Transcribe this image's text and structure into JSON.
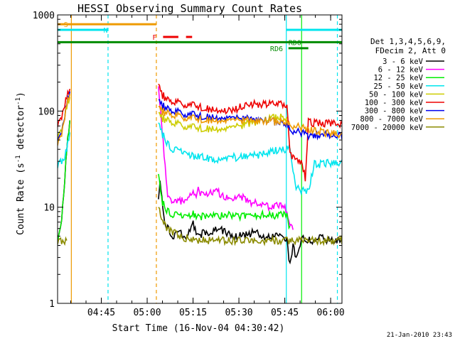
{
  "chart_data": {
    "type": "line",
    "title": "HESSI Observing Summary Count Rates",
    "xlabel": "Start Time (16-Nov-04 04:30:42)",
    "ylabel_main": "Count Rate (s",
    "ylabel_sup1": "-1",
    "ylabel_mid": " detector",
    "ylabel_sup2": "-1",
    "ylabel_end": ")",
    "yscale": "log",
    "ylim": [
      1,
      1000
    ],
    "xlim_minutes": [
      0,
      93
    ],
    "x_ticks": [
      {
        "label": "04:45",
        "minute": 14.3
      },
      {
        "label": "05:00",
        "minute": 29.3
      },
      {
        "label": "05:15",
        "minute": 44.3
      },
      {
        "label": "05:30",
        "minute": 59.3
      },
      {
        "label": "05:45",
        "minute": 74.3
      },
      {
        "label": "06:00",
        "minute": 89.3
      }
    ],
    "y_ticks": [
      {
        "label": "1",
        "value": 1
      },
      {
        "label": "10",
        "value": 10
      },
      {
        "label": "100",
        "value": 100
      },
      {
        "label": "1000",
        "value": 1000
      }
    ],
    "legend_header": [
      "Det 1,3,4,5,6,9,",
      "FDecim 2, Att 0"
    ],
    "series": [
      {
        "name": "3 - 6 keV",
        "color": "#000000",
        "x": [
          0,
          1,
          2,
          3,
          4,
          33,
          33.5,
          35,
          36,
          38,
          40,
          42,
          44,
          46,
          48,
          50,
          52,
          55,
          58,
          61,
          64,
          67,
          70,
          73,
          75,
          76,
          77,
          78,
          80,
          82,
          84,
          86,
          88,
          90,
          92,
          93
        ],
        "y": [
          4.5,
          6,
          14,
          40,
          80,
          12,
          20,
          7,
          6,
          5,
          5.5,
          4.5,
          7,
          5,
          5.5,
          5,
          6,
          5.5,
          5,
          5,
          5.5,
          5,
          5,
          5,
          4.5,
          2.5,
          4,
          3,
          5,
          4.5,
          4.5,
          5,
          4.5,
          4.5,
          4.5,
          4.5
        ]
      },
      {
        "name": "6 - 12 keV",
        "color": "#ff00ff",
        "x": [
          0,
          1,
          2,
          3,
          4,
          33,
          33.5,
          34.5,
          35.5,
          36,
          37,
          39,
          41,
          43,
          44,
          45,
          46,
          48,
          50,
          52,
          54,
          56,
          58,
          60,
          62,
          64,
          66,
          68,
          70,
          72,
          74,
          75,
          76,
          77
        ],
        "y": [
          4.5,
          6,
          14,
          40,
          80,
          180,
          120,
          50,
          20,
          14,
          12,
          11,
          12,
          13,
          14,
          13,
          15,
          13,
          14,
          15,
          13,
          12,
          12,
          13,
          12,
          11,
          11,
          10.5,
          10,
          10.5,
          10,
          9,
          7,
          6
        ]
      },
      {
        "name": "12 - 25 keV",
        "color": "#00ee00",
        "x": [
          0,
          1,
          2,
          3,
          4,
          33,
          34,
          35,
          36,
          38,
          40,
          42,
          44,
          46,
          48,
          50,
          53,
          56,
          59,
          62,
          65,
          68,
          71,
          74,
          75,
          76
        ],
        "y": [
          4.5,
          6,
          14,
          40,
          80,
          22,
          12,
          10,
          9,
          8.5,
          8,
          8,
          8.5,
          8,
          8,
          8,
          8,
          8.5,
          8,
          8,
          8,
          8.5,
          8,
          8.5,
          8,
          6
        ]
      },
      {
        "name": "25 - 50 keV",
        "color": "#00e5ee",
        "x": [
          0,
          1,
          2,
          3,
          4,
          33,
          34,
          35,
          36,
          38,
          40,
          42,
          45,
          48,
          51,
          54,
          57,
          60,
          63,
          66,
          69,
          72,
          74,
          75,
          76,
          78,
          80,
          82,
          84,
          86,
          88,
          90,
          92,
          93
        ],
        "y": [
          28,
          30,
          32,
          40,
          60,
          75,
          60,
          52,
          45,
          40,
          38,
          36,
          34,
          33,
          32,
          32,
          33,
          33,
          34,
          35,
          37,
          39,
          40,
          41,
          41,
          16,
          15,
          15,
          28,
          28,
          29,
          28,
          29,
          29
        ]
      },
      {
        "name": "50 - 100 keV",
        "color": "#cdcd00",
        "x": [
          0,
          1,
          2,
          3,
          4,
          33,
          34,
          36,
          38,
          40,
          42,
          44,
          46,
          48,
          50,
          52,
          55,
          58,
          61,
          64,
          67,
          70,
          73,
          75
        ],
        "y": [
          55,
          60,
          80,
          110,
          140,
          95,
          85,
          80,
          75,
          72,
          70,
          68,
          67,
          66,
          66,
          65,
          66,
          68,
          72,
          76,
          80,
          84,
          86,
          82
        ]
      },
      {
        "name": "100 - 300 keV",
        "color": "#ee0000",
        "x": [
          0,
          1,
          2,
          3,
          4,
          33,
          34,
          36,
          38,
          40,
          42,
          44,
          46,
          48,
          50,
          52,
          54,
          56,
          58,
          60,
          62,
          64,
          66,
          68,
          70,
          72,
          74,
          75,
          76,
          78,
          80,
          81,
          82,
          84,
          86,
          88,
          90,
          92,
          93
        ],
        "y": [
          75,
          80,
          110,
          140,
          170,
          190,
          150,
          130,
          125,
          120,
          118,
          115,
          112,
          108,
          105,
          103,
          102,
          103,
          105,
          110,
          115,
          118,
          118,
          118,
          118,
          118,
          117,
          110,
          36,
          32,
          29,
          20,
          78,
          75,
          75,
          74,
          74,
          74,
          74
        ]
      },
      {
        "name": "300 - 800 keV",
        "color": "#0000ee",
        "x": [
          0,
          1,
          2,
          3,
          4,
          33,
          34,
          36,
          38,
          40,
          42,
          44,
          46,
          48,
          50,
          52,
          55,
          58,
          61,
          64,
          67,
          70,
          73,
          75,
          76,
          78,
          80,
          81,
          82,
          84,
          86,
          88,
          90,
          92,
          93
        ],
        "y": [
          50,
          55,
          80,
          120,
          160,
          130,
          115,
          105,
          100,
          96,
          94,
          92,
          90,
          88,
          87,
          86,
          85,
          84,
          83,
          82,
          80,
          78,
          76,
          72,
          64,
          62,
          60,
          58,
          56,
          57,
          57,
          56,
          56,
          55,
          55
        ]
      },
      {
        "name": "800 - 7000 keV",
        "color": "#ee9a00",
        "x": [
          0,
          1,
          2,
          3,
          4,
          33,
          34,
          36,
          38,
          40,
          42,
          44,
          46,
          48,
          50,
          52,
          55,
          58,
          61,
          64,
          67,
          70,
          73,
          75,
          76,
          78,
          80,
          82,
          84,
          86,
          88,
          90,
          92,
          93
        ],
        "y": [
          48,
          52,
          78,
          118,
          150,
          110,
          100,
          95,
          90,
          88,
          86,
          84,
          83,
          82,
          81,
          80,
          80,
          80,
          80,
          79,
          79,
          78,
          77,
          76,
          72,
          70,
          68,
          65,
          62,
          61,
          59,
          58,
          57,
          56
        ]
      },
      {
        "name": "7000 - 20000 keV",
        "color": "#8b8b00",
        "x": [
          0,
          1,
          2,
          3,
          33,
          34,
          36,
          38,
          40,
          42,
          44,
          46,
          48,
          50,
          53,
          56,
          59,
          62,
          65,
          68,
          71,
          74,
          76,
          78,
          80,
          82,
          84,
          86,
          88,
          90,
          92,
          93
        ],
        "y": [
          4.5,
          4.5,
          4.5,
          4.5,
          10,
          7,
          6,
          5.5,
          5,
          4.8,
          4.6,
          4.5,
          4.5,
          4.5,
          4.5,
          4.5,
          4.5,
          4.5,
          4.5,
          4.5,
          4.5,
          4.5,
          4.5,
          4.5,
          4.5,
          4.5,
          4.5,
          4.5,
          4.5,
          4.5,
          4.5,
          4.5
        ]
      }
    ],
    "vertical_markers": [
      {
        "minute": 4.5,
        "color": "#ee9a00",
        "style": "solid"
      },
      {
        "minute": 16.5,
        "color": "#00e5ee",
        "style": "dashed"
      },
      {
        "minute": 32.3,
        "color": "#ee9a00",
        "style": "dashed"
      },
      {
        "minute": 74.8,
        "color": "#00e5ee",
        "style": "solid"
      },
      {
        "minute": 79.8,
        "color": "#00ee00",
        "style": "solid"
      },
      {
        "minute": 91.5,
        "color": "#00e5ee",
        "style": "dashed"
      }
    ],
    "flag_bars": [
      {
        "label": "S",
        "color": "#ee9a00",
        "x_from": 0,
        "x_to": 32.3,
        "value": 800,
        "label_at": 2
      },
      {
        "label": "N",
        "color": "#00e5ee",
        "x_from": 0,
        "x_to": 16.5,
        "value": 700,
        "label_at": 15
      },
      {
        "label": "N",
        "color": "#00e5ee",
        "x_from": 74.8,
        "x_to": 93,
        "value": 700,
        "label_at": null
      },
      {
        "label": "F",
        "color": "#ee0000",
        "x_from": 34.5,
        "x_to": 39.5,
        "value": 590,
        "label_at": 31
      },
      {
        "label": "F",
        "color": "#ee0000",
        "x_from": 42,
        "x_to": 44,
        "value": 590,
        "label_at": null
      },
      {
        "label": "",
        "color": "#008b00",
        "x_from": 0,
        "x_to": 93,
        "value": 520,
        "label_at": null
      },
      {
        "label": "RD0",
        "color": "#008b00",
        "x_from": 79.5,
        "x_to": 79.5,
        "value": 520,
        "label_at": 75.5
      },
      {
        "label": "RD6",
        "color": "#008b00",
        "x_from": 75.5,
        "x_to": 82,
        "value": 450,
        "label_at": 69.5
      }
    ]
  },
  "footer_date": "21-Jan-2010 23:43"
}
